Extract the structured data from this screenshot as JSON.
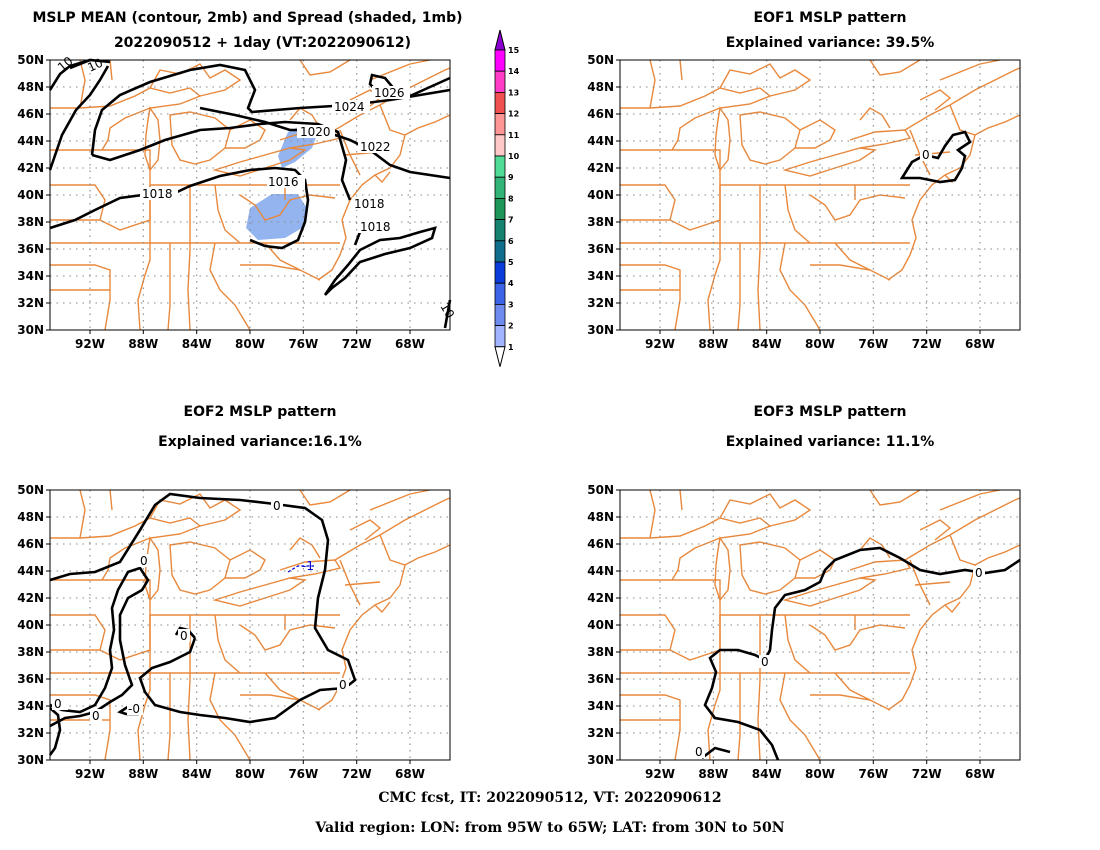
{
  "panels": [
    {
      "id": "mean",
      "title_lines": [
        "MSLP MEAN (contour, 2mb) and Spread (shaded, 1mb)",
        "2022090512 + 1day (VT:2022090612)"
      ],
      "contour_labels": [
        "1026",
        "1024",
        "1022",
        "1020",
        "1018",
        "1016",
        "1018",
        "1018",
        "10",
        "10",
        "10"
      ],
      "spread_shading": [
        2,
        2
      ]
    },
    {
      "id": "eof1",
      "title_lines": [
        "EOF1 MSLP pattern",
        "Explained variance: 39.5%"
      ],
      "contour_labels": [
        "0"
      ]
    },
    {
      "id": "eof2",
      "title_lines": [
        "EOF2 MSLP pattern",
        "Explained variance:16.1%"
      ],
      "contour_labels": [
        "0",
        "0",
        "0",
        "0",
        "0",
        "0",
        "-0",
        "-1"
      ]
    },
    {
      "id": "eof3",
      "title_lines": [
        "EOF3 MSLP pattern",
        "Explained variance: 11.1%"
      ],
      "contour_labels": [
        "0",
        "0",
        "0"
      ]
    }
  ],
  "axes": {
    "lat_labels": [
      "50N",
      "48N",
      "46N",
      "44N",
      "42N",
      "40N",
      "38N",
      "36N",
      "34N",
      "32N",
      "30N"
    ],
    "lon_labels": [
      "92W",
      "88W",
      "84W",
      "80W",
      "76W",
      "72W",
      "68W"
    ]
  },
  "colorbar": {
    "labels": [
      "1",
      "2",
      "3",
      "4",
      "5",
      "6",
      "7",
      "8",
      "9",
      "10",
      "11",
      "12",
      "13",
      "14",
      "15"
    ],
    "colors": [
      "#c8dcff",
      "#a0b4ff",
      "#6e8cf0",
      "#3c64e6",
      "#0a3cdc",
      "#0f6e8c",
      "#14826e",
      "#1e965a",
      "#32b478",
      "#50dc96",
      "#ffc8c8",
      "#ff9696",
      "#f05050",
      "#ff3cc8",
      "#ff00ff",
      "#8c00d2"
    ]
  },
  "map_colors": {
    "boundaries": "#e8883c",
    "contour": "#000000",
    "negative": "#0000cc",
    "spread": "#94b4f0"
  },
  "footer": {
    "line1": "CMC fcst, IT: 2022090512, VT: 2022090612",
    "line2": "Valid region: LON: from 95W to 65W; LAT: from 30N to 50N"
  }
}
